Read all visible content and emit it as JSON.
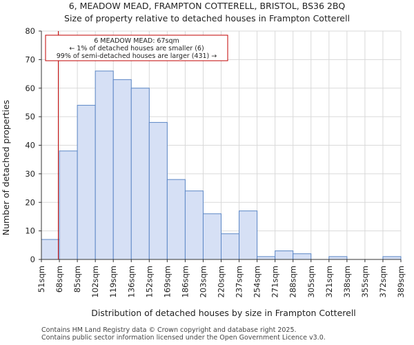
{
  "chart_data": {
    "type": "bar",
    "title_line1": "6, MEADOW MEAD, FRAMPTON COTTERELL, BRISTOL, BS36 2BQ",
    "title_line2": "Size of property relative to detached houses in Frampton Cotterell",
    "xlabel": "Distribution of detached houses by size in Frampton Cotterell",
    "ylabel": "Number of detached properties",
    "ylim": [
      0,
      80
    ],
    "yticks": [
      0,
      10,
      20,
      30,
      40,
      50,
      60,
      70,
      80
    ],
    "bin_edges": [
      51,
      68,
      85,
      102,
      119,
      136,
      152,
      169,
      186,
      203,
      220,
      237,
      254,
      271,
      288,
      305,
      321,
      338,
      355,
      372,
      389
    ],
    "tick_labels": [
      "51sqm",
      "68sqm",
      "85sqm",
      "102sqm",
      "119sqm",
      "136sqm",
      "152sqm",
      "169sqm",
      "186sqm",
      "203sqm",
      "220sqm",
      "237sqm",
      "254sqm",
      "271sqm",
      "288sqm",
      "305sqm",
      "321sqm",
      "338sqm",
      "355sqm",
      "372sqm",
      "389sqm"
    ],
    "values": [
      7,
      38,
      54,
      66,
      63,
      60,
      48,
      28,
      24,
      16,
      9,
      17,
      1,
      3,
      2,
      0,
      1,
      0,
      0,
      1
    ],
    "marker_value": 67,
    "annotation": {
      "line1": "6 MEADOW MEAD: 67sqm",
      "line2": "← 1% of detached houses are smaller (6)",
      "line3": "99% of semi-detached houses are larger (431) →"
    },
    "colors": {
      "bar_fill": "#d6e0f5",
      "bar_stroke": "#5b86c5",
      "marker": "#c00000",
      "grid": "#d9d9d9"
    }
  },
  "footer": {
    "line1": "Contains HM Land Registry data © Crown copyright and database right 2025.",
    "line2": "Contains public sector information licensed under the Open Government Licence v3.0."
  }
}
